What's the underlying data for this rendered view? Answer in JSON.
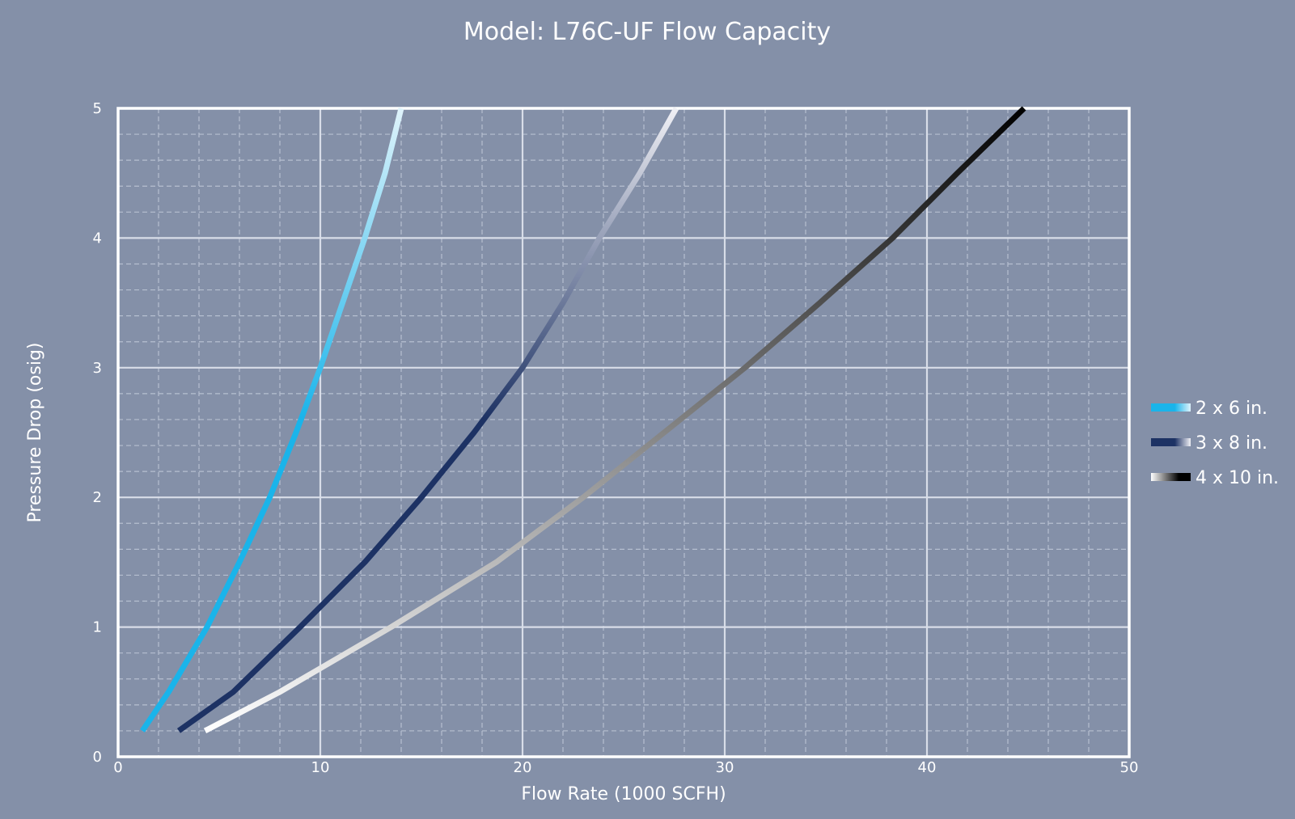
{
  "chart_data": {
    "type": "line",
    "title": "Model: L76C-UF Flow Capacity",
    "xlabel": "Flow Rate (1000 SCFH)",
    "ylabel": "Pressure Drop (osig)",
    "xlim": [
      0,
      50
    ],
    "ylim": [
      0,
      5
    ],
    "x_ticks": [
      0,
      10,
      20,
      30,
      40,
      50
    ],
    "y_ticks": [
      0,
      1,
      2,
      3,
      4,
      5
    ],
    "grid": true,
    "legend_position": "right",
    "series": [
      {
        "name": "2 x 6 in.",
        "colors": [
          "#1ab4ea",
          "#dff3fb"
        ],
        "x": [
          1.2,
          2.5,
          4.4,
          6.0,
          7.5,
          8.8,
          10.0,
          11.1,
          12.2,
          13.2,
          14.0
        ],
        "y": [
          0.2,
          0.5,
          1.0,
          1.5,
          2.0,
          2.5,
          3.0,
          3.5,
          4.0,
          4.5,
          5.0
        ]
      },
      {
        "name": "3 x 8 in.",
        "colors": [
          "#1d3264",
          "#f0f0f5"
        ],
        "x": [
          3.0,
          5.7,
          9.0,
          12.2,
          15.0,
          17.6,
          20.0,
          22.0,
          23.8,
          25.8,
          27.6
        ],
        "y": [
          0.2,
          0.5,
          1.0,
          1.5,
          2.0,
          2.5,
          3.0,
          3.5,
          4.0,
          4.5,
          5.0
        ]
      },
      {
        "name": "4 x 10 in.",
        "colors": [
          "#ffffff",
          "#000000"
        ],
        "x": [
          4.3,
          8.0,
          13.5,
          18.7,
          23.0,
          27.0,
          31.0,
          34.7,
          38.3,
          41.5,
          44.8
        ],
        "y": [
          0.2,
          0.5,
          1.0,
          1.5,
          2.0,
          2.5,
          3.0,
          3.5,
          4.0,
          4.5,
          5.0
        ]
      }
    ]
  }
}
